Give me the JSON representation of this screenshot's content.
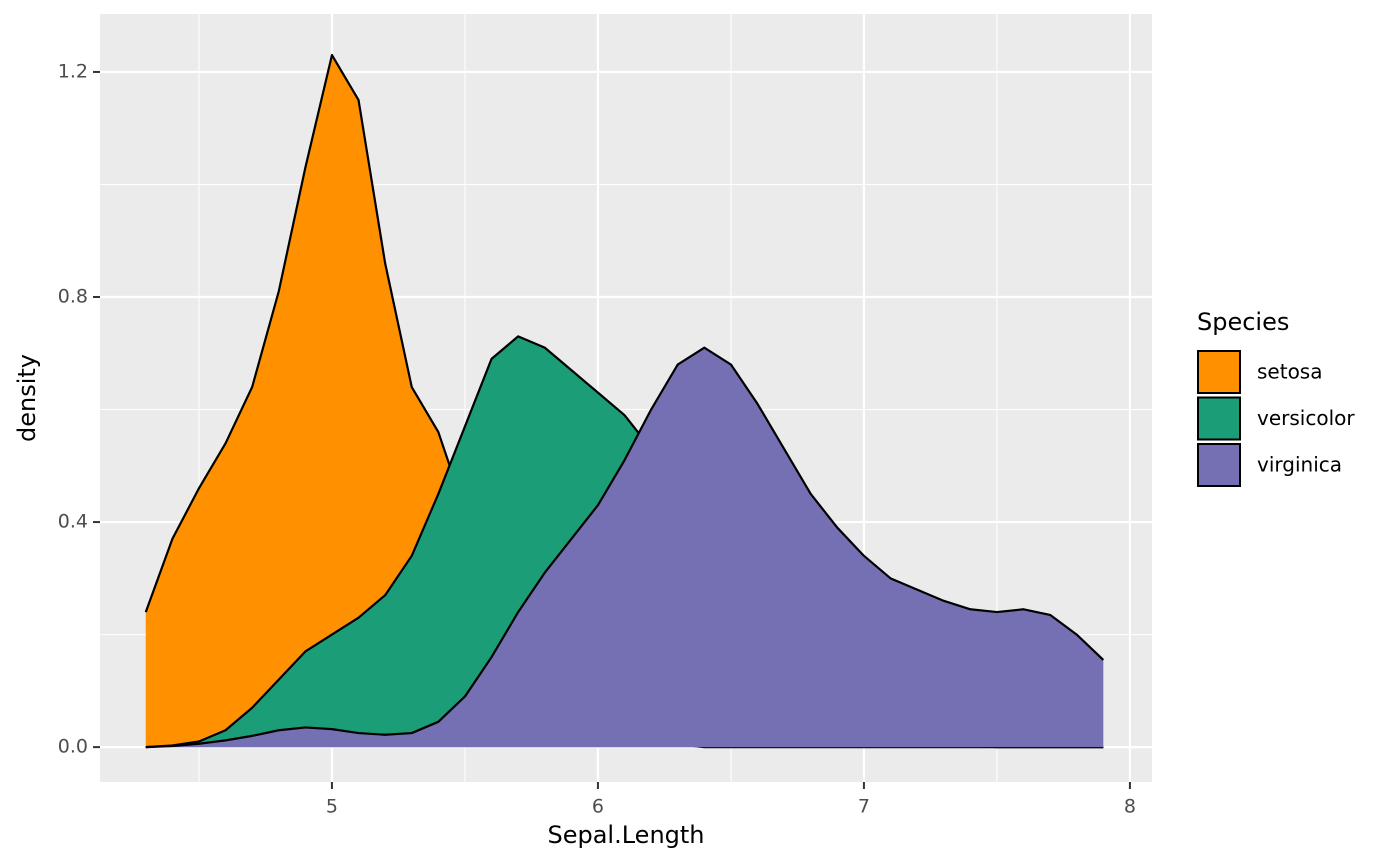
{
  "chart_data": {
    "type": "density",
    "x_label": "Sepal.Length",
    "y_label": "density",
    "legend_title": "Species",
    "legend_position": "right",
    "grid": true,
    "x": [
      4.3,
      4.4,
      4.5,
      4.6,
      4.7,
      4.8,
      4.9,
      5.0,
      5.1,
      5.2,
      5.3,
      5.4,
      5.5,
      5.6,
      5.7,
      5.8,
      5.9,
      6.0,
      6.1,
      6.2,
      6.3,
      6.4,
      6.5,
      6.6,
      6.7,
      6.8,
      6.9,
      7.0,
      7.1,
      7.2,
      7.3,
      7.4,
      7.5,
      7.6,
      7.7,
      7.8,
      7.9
    ],
    "series": [
      {
        "name": "setosa",
        "color": "#ff9000",
        "values": [
          0.24,
          0.37,
          0.46,
          0.54,
          0.64,
          0.81,
          1.03,
          1.23,
          1.15,
          0.86,
          0.64,
          0.56,
          0.42,
          0.3,
          0.22,
          0.14,
          0.08,
          0.04,
          0.02,
          0.01,
          0.005,
          0,
          0,
          0,
          0,
          0,
          0,
          0,
          0,
          0,
          0,
          0,
          0,
          0,
          0,
          0,
          0
        ]
      },
      {
        "name": "versicolor",
        "color": "#1b9e77",
        "values": [
          0,
          0.003,
          0.01,
          0.03,
          0.07,
          0.12,
          0.17,
          0.2,
          0.23,
          0.27,
          0.34,
          0.45,
          0.57,
          0.69,
          0.73,
          0.71,
          0.67,
          0.63,
          0.59,
          0.53,
          0.45,
          0.37,
          0.3,
          0.24,
          0.19,
          0.14,
          0.09,
          0.05,
          0.03,
          0.015,
          0.007,
          0.003,
          0,
          0,
          0,
          0,
          0
        ]
      },
      {
        "name": "virginica",
        "color": "#7570b3",
        "values": [
          0,
          0.002,
          0.006,
          0.012,
          0.02,
          0.03,
          0.035,
          0.032,
          0.025,
          0.022,
          0.025,
          0.045,
          0.09,
          0.16,
          0.24,
          0.31,
          0.37,
          0.43,
          0.51,
          0.6,
          0.68,
          0.71,
          0.68,
          0.61,
          0.53,
          0.45,
          0.39,
          0.34,
          0.3,
          0.28,
          0.26,
          0.245,
          0.24,
          0.245,
          0.235,
          0.2,
          0.155
        ]
      }
    ],
    "xlim": [
      4.128,
      8.083
    ],
    "xticks": [
      5,
      6,
      7,
      8
    ],
    "ylim": [
      -0.062,
      1.303
    ],
    "yticks": [
      {
        "value": 0,
        "label": "0.0"
      },
      0.4,
      0.8,
      1.2
    ]
  }
}
